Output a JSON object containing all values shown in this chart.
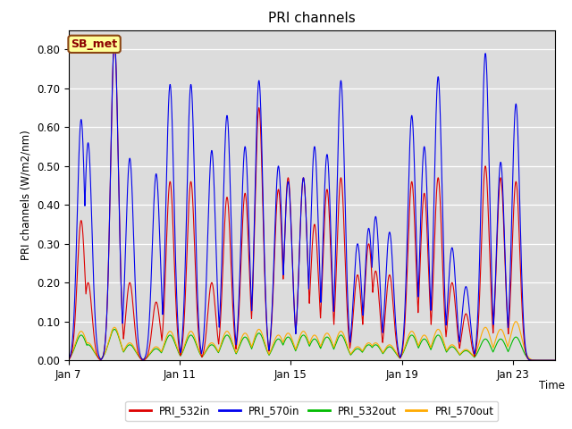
{
  "title": "PRI channels",
  "ylabel": "PRI channels (W/m2/nm)",
  "xlabel": "Time",
  "annotation": "SB_met",
  "ylim": [
    0.0,
    0.85
  ],
  "xlim": [
    0,
    17.5
  ],
  "bg_color": "#dcdcdc",
  "series": {
    "PRI_532in": {
      "color": "#dd0000",
      "lw": 0.8
    },
    "PRI_570in": {
      "color": "#0000ee",
      "lw": 0.8
    },
    "PRI_532out": {
      "color": "#00bb00",
      "lw": 0.8
    },
    "PRI_570out": {
      "color": "#ffaa00",
      "lw": 0.8
    }
  },
  "legend_items": [
    {
      "label": "PRI_532in",
      "color": "#dd0000"
    },
    {
      "label": "PRI_570in",
      "color": "#0000ee"
    },
    {
      "label": "PRI_532out",
      "color": "#00bb00"
    },
    {
      "label": "PRI_570out",
      "color": "#ffaa00"
    }
  ],
  "xtick_labels": [
    "Jan 7",
    "Jan 11",
    "Jan 15",
    "Jan 19",
    "Jan 23"
  ],
  "xtick_positions": [
    0,
    4,
    8,
    12,
    16
  ],
  "ytick_positions": [
    0.0,
    0.1,
    0.2,
    0.3,
    0.4,
    0.5,
    0.6,
    0.7,
    0.8
  ],
  "ytick_labels": [
    "0.00",
    "0.10",
    "0.20",
    "0.30",
    "0.40",
    "0.50",
    "0.60",
    "0.70",
    "0.80"
  ],
  "peaks_blue": [
    [
      0.45,
      0.62
    ],
    [
      0.7,
      0.56
    ],
    [
      1.65,
      0.82
    ],
    [
      2.2,
      0.52
    ],
    [
      3.15,
      0.48
    ],
    [
      3.65,
      0.71
    ],
    [
      4.4,
      0.71
    ],
    [
      5.15,
      0.54
    ],
    [
      5.7,
      0.63
    ],
    [
      6.35,
      0.55
    ],
    [
      6.85,
      0.72
    ],
    [
      7.55,
      0.5
    ],
    [
      7.9,
      0.46
    ],
    [
      8.45,
      0.47
    ],
    [
      8.85,
      0.55
    ],
    [
      9.3,
      0.53
    ],
    [
      9.8,
      0.72
    ],
    [
      10.4,
      0.3
    ],
    [
      10.8,
      0.34
    ],
    [
      11.05,
      0.37
    ],
    [
      11.55,
      0.33
    ],
    [
      12.35,
      0.63
    ],
    [
      12.8,
      0.55
    ],
    [
      13.3,
      0.73
    ],
    [
      13.8,
      0.29
    ],
    [
      14.3,
      0.19
    ],
    [
      15.0,
      0.79
    ],
    [
      15.55,
      0.51
    ],
    [
      16.1,
      0.66
    ]
  ],
  "peaks_red": [
    [
      0.45,
      0.36
    ],
    [
      0.7,
      0.2
    ],
    [
      1.65,
      0.82
    ],
    [
      2.2,
      0.2
    ],
    [
      3.15,
      0.15
    ],
    [
      3.65,
      0.46
    ],
    [
      4.4,
      0.46
    ],
    [
      5.15,
      0.2
    ],
    [
      5.7,
      0.42
    ],
    [
      6.35,
      0.43
    ],
    [
      6.85,
      0.65
    ],
    [
      7.55,
      0.44
    ],
    [
      7.9,
      0.47
    ],
    [
      8.45,
      0.47
    ],
    [
      8.85,
      0.35
    ],
    [
      9.3,
      0.44
    ],
    [
      9.8,
      0.47
    ],
    [
      10.4,
      0.22
    ],
    [
      10.8,
      0.3
    ],
    [
      11.05,
      0.23
    ],
    [
      11.55,
      0.22
    ],
    [
      12.35,
      0.46
    ],
    [
      12.8,
      0.43
    ],
    [
      13.3,
      0.47
    ],
    [
      13.8,
      0.2
    ],
    [
      14.3,
      0.12
    ],
    [
      15.0,
      0.5
    ],
    [
      15.55,
      0.47
    ],
    [
      16.1,
      0.46
    ]
  ],
  "peaks_green": [
    [
      0.45,
      0.065
    ],
    [
      0.7,
      0.04
    ],
    [
      1.65,
      0.08
    ],
    [
      2.2,
      0.04
    ],
    [
      3.15,
      0.03
    ],
    [
      3.65,
      0.065
    ],
    [
      4.4,
      0.065
    ],
    [
      5.15,
      0.04
    ],
    [
      5.7,
      0.065
    ],
    [
      6.35,
      0.06
    ],
    [
      6.85,
      0.07
    ],
    [
      7.55,
      0.055
    ],
    [
      7.9,
      0.06
    ],
    [
      8.45,
      0.065
    ],
    [
      8.85,
      0.055
    ],
    [
      9.3,
      0.06
    ],
    [
      9.8,
      0.065
    ],
    [
      10.4,
      0.03
    ],
    [
      10.8,
      0.04
    ],
    [
      11.05,
      0.04
    ],
    [
      11.55,
      0.035
    ],
    [
      12.35,
      0.065
    ],
    [
      12.8,
      0.055
    ],
    [
      13.3,
      0.065
    ],
    [
      13.8,
      0.035
    ],
    [
      14.3,
      0.025
    ],
    [
      15.0,
      0.055
    ],
    [
      15.55,
      0.055
    ],
    [
      16.1,
      0.06
    ]
  ],
  "peaks_orange": [
    [
      0.45,
      0.075
    ],
    [
      0.7,
      0.045
    ],
    [
      1.65,
      0.085
    ],
    [
      2.2,
      0.045
    ],
    [
      3.15,
      0.035
    ],
    [
      3.65,
      0.075
    ],
    [
      4.4,
      0.075
    ],
    [
      5.15,
      0.045
    ],
    [
      5.7,
      0.075
    ],
    [
      6.35,
      0.07
    ],
    [
      6.85,
      0.08
    ],
    [
      7.55,
      0.065
    ],
    [
      7.9,
      0.07
    ],
    [
      8.45,
      0.075
    ],
    [
      8.85,
      0.065
    ],
    [
      9.3,
      0.07
    ],
    [
      9.8,
      0.075
    ],
    [
      10.4,
      0.035
    ],
    [
      10.8,
      0.045
    ],
    [
      11.05,
      0.045
    ],
    [
      11.55,
      0.04
    ],
    [
      12.35,
      0.075
    ],
    [
      12.8,
      0.065
    ],
    [
      13.3,
      0.08
    ],
    [
      13.8,
      0.04
    ],
    [
      14.3,
      0.028
    ],
    [
      15.0,
      0.085
    ],
    [
      15.55,
      0.08
    ],
    [
      16.1,
      0.1
    ]
  ]
}
